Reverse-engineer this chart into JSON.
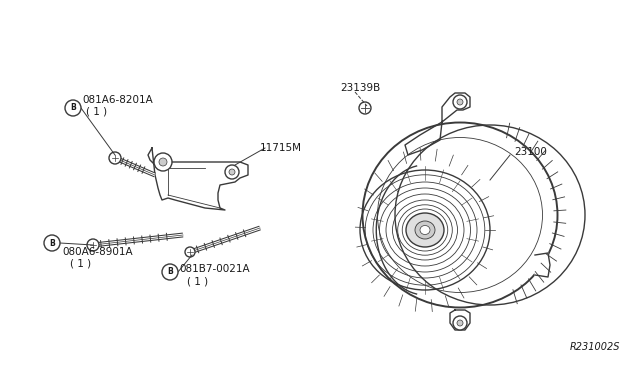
{
  "bg_color": "#ffffff",
  "line_color": "#3a3a3a",
  "text_color": "#1a1a1a",
  "fig_width": 6.4,
  "fig_height": 3.72,
  "dpi": 100,
  "diagram_ref": "R231002S",
  "label_081A6_8201A": "²081A6-8201A\n ( 1 )",
  "label_11715M": "11715M",
  "label_080A6_8901A": "²080A6-8901A\n  ( 1 )",
  "label_081B7_0021A": "²081B7-0021A\n   ( 1 )",
  "label_23139B": "23139B",
  "label_23100": "23100"
}
